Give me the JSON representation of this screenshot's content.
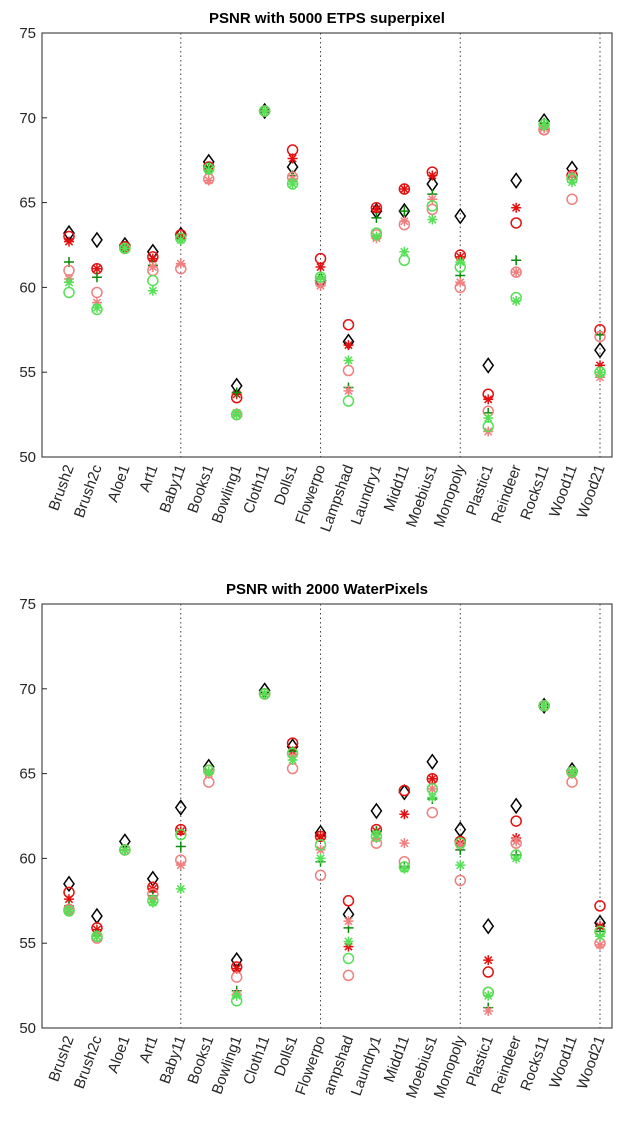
{
  "chart_data": [
    {
      "type": "scatter",
      "title": "PSNR with 5000 ETPS superpixel",
      "categories": [
        "Brush2",
        "Brush2c",
        "Aloe1",
        "Art1",
        "Baby11",
        "Books1",
        "Bowling1",
        "Cloth11",
        "Dolls1",
        "Flowerpo",
        "Lampshad",
        "Laundry1",
        "Midd11",
        "Moebius1",
        "Monopoly",
        "Plastic1",
        "Reindeer",
        "Rocks11",
        "Wood11",
        "Wood21"
      ],
      "separators": [
        4,
        9,
        14,
        19
      ],
      "ylim": [
        50,
        75
      ],
      "yticks": [
        50,
        55,
        60,
        65,
        70,
        75
      ],
      "grid": false,
      "series": [
        {
          "color": "#000000",
          "marker": "diamond",
          "values": [
            63.2,
            62.8,
            62.5,
            62.1,
            63.1,
            67.4,
            54.2,
            70.4,
            67.1,
            60.4,
            56.8,
            64.5,
            64.5,
            66.1,
            64.2,
            55.4,
            66.3,
            69.8,
            67.0,
            56.3
          ]
        },
        {
          "color": "#e41010",
          "marker": "circle",
          "values": [
            63.0,
            61.1,
            62.4,
            61.8,
            63.1,
            67.1,
            53.5,
            70.4,
            68.1,
            61.7,
            57.8,
            64.7,
            65.8,
            66.8,
            61.9,
            53.7,
            63.8,
            69.3,
            66.6,
            57.5
          ]
        },
        {
          "color": "#e41010",
          "marker": "asterisk",
          "values": [
            62.7,
            61.1,
            62.4,
            61.7,
            63.0,
            67.0,
            53.7,
            70.4,
            67.6,
            61.2,
            56.6,
            64.6,
            65.8,
            66.6,
            61.8,
            53.4,
            64.7,
            69.5,
            66.6,
            55.4
          ]
        },
        {
          "color": "#0a8a0a",
          "marker": "plus",
          "values": [
            61.5,
            60.6,
            62.3,
            61.3,
            62.8,
            67.1,
            53.8,
            70.4,
            66.6,
            60.5,
            54.1,
            64.1,
            64.5,
            65.5,
            60.7,
            52.6,
            61.6,
            69.7,
            66.5,
            57.2
          ]
        },
        {
          "color": "#f08080",
          "marker": "circle",
          "values": [
            61.0,
            59.7,
            62.3,
            61.0,
            61.1,
            66.4,
            52.5,
            70.4,
            66.5,
            60.3,
            55.1,
            63.1,
            63.7,
            64.6,
            60.0,
            52.7,
            60.9,
            69.3,
            65.2,
            57.1
          ]
        },
        {
          "color": "#f08080",
          "marker": "asterisk",
          "values": [
            60.5,
            59.1,
            62.3,
            61.2,
            61.4,
            66.3,
            52.6,
            70.4,
            66.4,
            60.1,
            53.9,
            62.9,
            63.9,
            65.2,
            60.3,
            51.5,
            60.9,
            69.4,
            66.6,
            54.7
          ]
        },
        {
          "color": "#55e055",
          "marker": "asterisk",
          "values": [
            60.3,
            58.8,
            62.3,
            59.8,
            62.8,
            66.9,
            52.5,
            70.4,
            66.1,
            60.6,
            55.7,
            63.0,
            62.1,
            64.0,
            61.5,
            52.3,
            59.2,
            69.6,
            66.2,
            55.0
          ]
        },
        {
          "color": "#55e055",
          "marker": "circle",
          "values": [
            59.7,
            58.7,
            62.3,
            60.4,
            62.9,
            67.0,
            52.5,
            70.4,
            66.1,
            60.6,
            53.3,
            63.2,
            61.6,
            64.8,
            61.2,
            51.8,
            59.4,
            69.6,
            66.4,
            55.0
          ]
        }
      ]
    },
    {
      "type": "scatter",
      "title": "PSNR with 2000 WaterPixels",
      "categories": [
        "Brush2",
        "Brush2c",
        "Aloe1",
        "Art1",
        "Baby11",
        "Books1",
        "Bowling1",
        "Cloth11",
        "Dolls1",
        "Flowerpo",
        "ampshad",
        "Laundry1",
        "Midd11",
        "Moebius1",
        "Monopoly",
        "Plastic1",
        "Reindeer",
        "Rocks11",
        "Wood11",
        "Wood21"
      ],
      "separators": [
        4,
        9,
        14,
        19
      ],
      "ylim": [
        50,
        75
      ],
      "yticks": [
        50,
        55,
        60,
        65,
        70,
        75
      ],
      "grid": false,
      "series": [
        {
          "color": "#000000",
          "marker": "diamond",
          "values": [
            58.5,
            56.6,
            61.0,
            58.8,
            63.0,
            65.4,
            54.0,
            69.9,
            66.6,
            61.5,
            56.7,
            62.8,
            63.9,
            65.7,
            61.7,
            56.0,
            63.1,
            69.0,
            65.2,
            56.2
          ]
        },
        {
          "color": "#e41010",
          "marker": "circle",
          "values": [
            58.0,
            55.9,
            60.5,
            58.3,
            61.7,
            65.2,
            53.6,
            69.7,
            66.8,
            61.3,
            57.5,
            61.7,
            64.0,
            64.7,
            61.0,
            53.3,
            62.2,
            69.0,
            65.1,
            57.2
          ]
        },
        {
          "color": "#e41010",
          "marker": "asterisk",
          "values": [
            57.6,
            55.8,
            60.5,
            58.2,
            61.6,
            65.1,
            53.5,
            69.7,
            66.3,
            61.3,
            54.8,
            61.6,
            62.6,
            64.7,
            60.9,
            54.0,
            61.2,
            69.0,
            65.1,
            56.0
          ]
        },
        {
          "color": "#0a8a0a",
          "marker": "plus",
          "values": [
            57.2,
            55.5,
            60.5,
            57.8,
            60.7,
            65.1,
            52.2,
            69.7,
            66.3,
            59.8,
            55.9,
            61.6,
            59.5,
            63.5,
            60.5,
            51.2,
            60.2,
            69.0,
            65.0,
            55.7
          ]
        },
        {
          "color": "#f08080",
          "marker": "circle",
          "values": [
            57.0,
            55.3,
            60.5,
            57.9,
            59.9,
            64.5,
            53.0,
            69.7,
            65.3,
            59.0,
            53.1,
            60.9,
            59.8,
            62.7,
            58.7,
            52.1,
            60.9,
            69.0,
            64.5,
            55.0
          ]
        },
        {
          "color": "#f08080",
          "marker": "asterisk",
          "values": [
            57.0,
            55.4,
            60.5,
            57.6,
            59.6,
            65.0,
            52.0,
            69.7,
            66.0,
            60.5,
            56.3,
            61.2,
            60.9,
            64.1,
            60.8,
            51.0,
            61.0,
            69.0,
            65.0,
            54.9
          ]
        },
        {
          "color": "#55e055",
          "marker": "asterisk",
          "values": [
            56.9,
            55.4,
            60.5,
            57.4,
            58.2,
            65.1,
            51.9,
            69.7,
            65.8,
            60.0,
            55.1,
            61.4,
            59.4,
            63.6,
            59.6,
            51.9,
            60.0,
            69.0,
            65.1,
            55.4
          ]
        },
        {
          "color": "#55e055",
          "marker": "circle",
          "values": [
            56.9,
            55.4,
            60.5,
            57.5,
            61.4,
            65.2,
            51.6,
            69.7,
            66.2,
            60.8,
            54.1,
            61.3,
            59.5,
            64.1,
            60.9,
            52.1,
            60.2,
            69.0,
            65.1,
            55.7
          ]
        }
      ]
    }
  ]
}
